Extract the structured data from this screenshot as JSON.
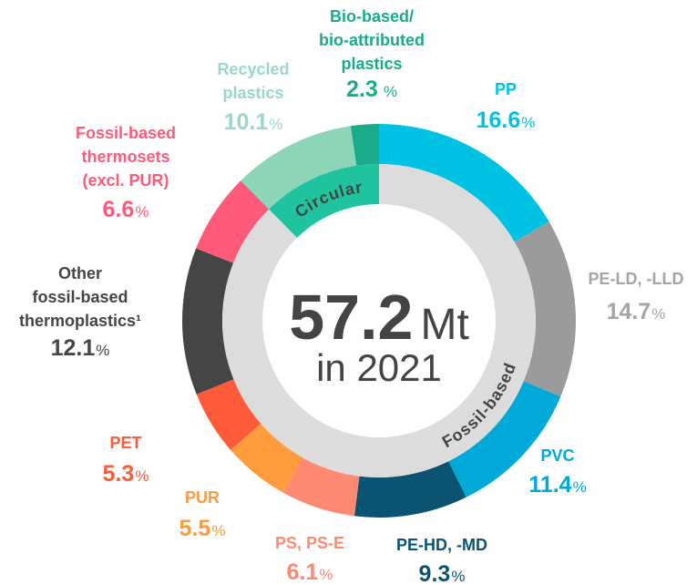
{
  "chart_data": {
    "type": "donut",
    "categories": [
      [
        "PP"
      ],
      [
        "PE-LD, -LLD"
      ],
      [
        "PVC"
      ],
      [
        "PE-HD, -MD"
      ],
      [
        "PS, PS-E"
      ],
      [
        "PUR"
      ],
      [
        "PET"
      ],
      [
        "Other",
        "fossil-based",
        "thermoplastics¹"
      ],
      [
        "Fossil-based",
        "thermosets",
        "(excl. PUR)"
      ],
      [
        "Recycled",
        "plastics"
      ],
      [
        "Bio-based/",
        "bio-attributed",
        "plastics"
      ]
    ],
    "values": [
      16.6,
      14.7,
      11.4,
      9.3,
      6.1,
      5.5,
      5.3,
      12.1,
      6.6,
      10.1,
      2.3
    ],
    "unit": "%",
    "colors": [
      "#00c3e3",
      "#9b9b9b",
      "#00a9d8",
      "#0b5471",
      "#ff8a74",
      "#ff9a3d",
      "#ff5a3a",
      "#454545",
      "#ff5a7a",
      "#8cd5b7",
      "#1aab8a"
    ],
    "label_colors": [
      "#00c3e3",
      "#a5a5a5",
      "#00a9d8",
      "#0b5471",
      "#ff8a74",
      "#ff9a3d",
      "#ff5a3a",
      "#454545",
      "#ff5a7a",
      "#9ad9bf",
      "#1aab8a"
    ],
    "total": 57.2,
    "total_unit": "Mt",
    "year_label": "in 2021",
    "rings": [
      {
        "label": "Circular",
        "color": "#1fc49f"
      },
      {
        "label": "Fossil-based",
        "color": "#dcdcdc"
      }
    ]
  }
}
